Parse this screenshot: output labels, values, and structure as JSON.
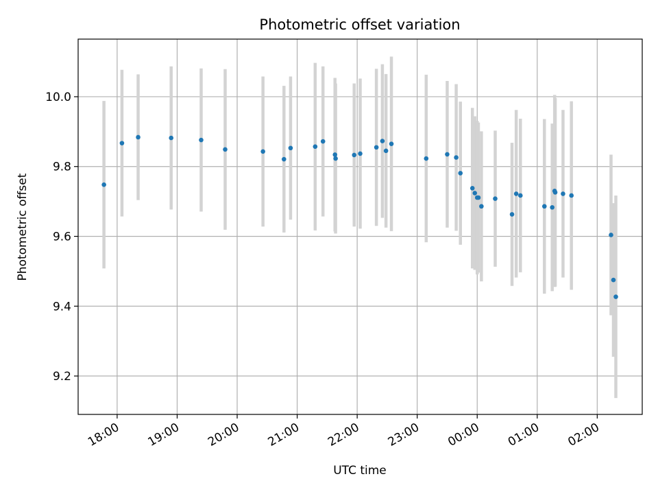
{
  "chart_data": {
    "type": "scatter",
    "title": "Photometric offset variation",
    "xlabel": "UTC time",
    "ylabel": "Photometric offset",
    "x_unit": "hours since 00:00 UTC (values < 0 are the previous evening)",
    "xlim": [
      -6.65,
      2.75
    ],
    "ylim": [
      9.09,
      10.165
    ],
    "grid": true,
    "legend": "none",
    "xticks": [
      {
        "value": -6,
        "label": "18:00"
      },
      {
        "value": -5,
        "label": "19:00"
      },
      {
        "value": -4,
        "label": "20:00"
      },
      {
        "value": -3,
        "label": "21:00"
      },
      {
        "value": -2,
        "label": "22:00"
      },
      {
        "value": -1,
        "label": "23:00"
      },
      {
        "value": 0,
        "label": "00:00"
      },
      {
        "value": 1,
        "label": "01:00"
      },
      {
        "value": 2,
        "label": "02:00"
      }
    ],
    "yticks": [
      {
        "value": 9.2,
        "label": "9.2"
      },
      {
        "value": 9.4,
        "label": "9.4"
      },
      {
        "value": 9.6,
        "label": "9.6"
      },
      {
        "value": 9.8,
        "label": "9.8"
      },
      {
        "value": 10.0,
        "label": "10.0"
      }
    ],
    "colors": {
      "points": "#1f77b4",
      "errorbars": "#d3d3d3",
      "grid": "#b0b0b0"
    },
    "points": [
      {
        "x": -6.22,
        "y": 9.748,
        "err": 0.24
      },
      {
        "x": -5.92,
        "y": 9.867,
        "err": 0.21
      },
      {
        "x": -5.65,
        "y": 9.884,
        "err": 0.18
      },
      {
        "x": -5.1,
        "y": 9.882,
        "err": 0.205
      },
      {
        "x": -4.6,
        "y": 9.876,
        "err": 0.205
      },
      {
        "x": -4.2,
        "y": 9.849,
        "err": 0.23
      },
      {
        "x": -3.57,
        "y": 9.843,
        "err": 0.215
      },
      {
        "x": -3.22,
        "y": 9.821,
        "err": 0.21
      },
      {
        "x": -3.11,
        "y": 9.853,
        "err": 0.205
      },
      {
        "x": -2.7,
        "y": 9.857,
        "err": 0.24
      },
      {
        "x": -2.57,
        "y": 9.872,
        "err": 0.215
      },
      {
        "x": -2.37,
        "y": 9.834,
        "err": 0.22
      },
      {
        "x": -2.36,
        "y": 9.823,
        "err": 0.215
      },
      {
        "x": -2.05,
        "y": 9.833,
        "err": 0.205
      },
      {
        "x": -1.95,
        "y": 9.837,
        "err": 0.215
      },
      {
        "x": -1.68,
        "y": 9.855,
        "err": 0.225
      },
      {
        "x": -1.58,
        "y": 9.873,
        "err": 0.22
      },
      {
        "x": -1.52,
        "y": 9.845,
        "err": 0.22
      },
      {
        "x": -1.43,
        "y": 9.865,
        "err": 0.25
      },
      {
        "x": -0.85,
        "y": 9.823,
        "err": 0.24
      },
      {
        "x": -0.5,
        "y": 9.835,
        "err": 0.21
      },
      {
        "x": -0.35,
        "y": 9.826,
        "err": 0.21
      },
      {
        "x": -0.28,
        "y": 9.781,
        "err": 0.205
      },
      {
        "x": -0.08,
        "y": 9.738,
        "err": 0.23
      },
      {
        "x": -0.04,
        "y": 9.724,
        "err": 0.22
      },
      {
        "x": 0.0,
        "y": 9.711,
        "err": 0.22
      },
      {
        "x": 0.02,
        "y": 9.711,
        "err": 0.215
      },
      {
        "x": 0.07,
        "y": 9.686,
        "err": 0.215
      },
      {
        "x": 0.3,
        "y": 9.708,
        "err": 0.195
      },
      {
        "x": 0.58,
        "y": 9.663,
        "err": 0.205
      },
      {
        "x": 0.65,
        "y": 9.722,
        "err": 0.24
      },
      {
        "x": 0.72,
        "y": 9.717,
        "err": 0.22
      },
      {
        "x": 1.12,
        "y": 9.686,
        "err": 0.25
      },
      {
        "x": 1.25,
        "y": 9.683,
        "err": 0.24
      },
      {
        "x": 1.29,
        "y": 9.73,
        "err": 0.275
      },
      {
        "x": 1.3,
        "y": 9.726,
        "err": 0.27
      },
      {
        "x": 1.43,
        "y": 9.722,
        "err": 0.24
      },
      {
        "x": 1.57,
        "y": 9.717,
        "err": 0.27
      },
      {
        "x": 2.23,
        "y": 9.604,
        "err": 0.23
      },
      {
        "x": 2.27,
        "y": 9.475,
        "err": 0.22
      },
      {
        "x": 2.31,
        "y": 9.427,
        "err": 0.29
      }
    ]
  }
}
